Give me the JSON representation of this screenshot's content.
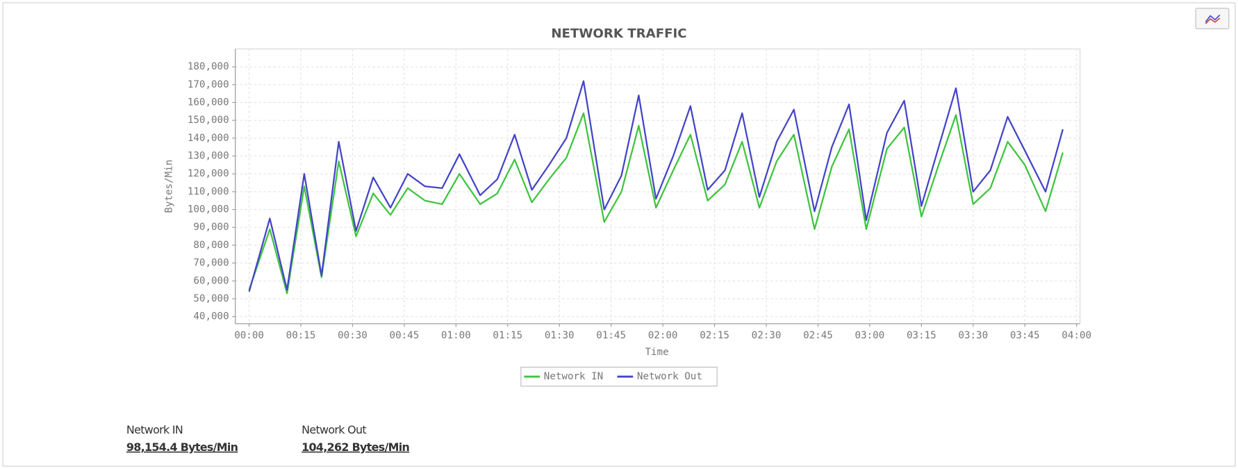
{
  "chart_data": {
    "type": "line",
    "title": "NETWORK TRAFFIC",
    "x_label": "Time",
    "y_label": "Bytes/Min",
    "x": [
      0,
      6,
      11,
      16,
      21,
      26,
      31,
      36,
      41,
      46,
      51,
      56,
      61,
      67,
      72,
      77,
      82,
      87,
      92,
      97,
      103,
      108,
      113,
      118,
      123,
      128,
      133,
      138,
      143,
      148,
      153,
      158,
      164,
      169,
      174,
      179,
      185,
      190,
      195,
      200,
      205,
      210,
      215,
      220,
      225,
      231,
      236
    ],
    "series": [
      {
        "name": "Network IN",
        "color": "#3fc43f",
        "values": [
          55000,
          89000,
          53000,
          113000,
          62000,
          127000,
          85000,
          109000,
          97000,
          112000,
          105000,
          103000,
          120000,
          103000,
          109000,
          128000,
          104000,
          117000,
          129000,
          154000,
          93000,
          110000,
          147000,
          101000,
          122000,
          142000,
          105000,
          114000,
          138000,
          101000,
          127000,
          142000,
          89000,
          124000,
          145000,
          89000,
          134000,
          146000,
          96000,
          125000,
          153000,
          103000,
          112000,
          138000,
          125000,
          99000,
          132000
        ]
      },
      {
        "name": "Network Out",
        "color": "#4444c8",
        "values": [
          54000,
          95000,
          55000,
          120000,
          63000,
          138000,
          88000,
          118000,
          101000,
          120000,
          113000,
          112000,
          131000,
          108000,
          117000,
          142000,
          111000,
          125000,
          140000,
          172000,
          100000,
          119000,
          164000,
          106000,
          130000,
          158000,
          111000,
          122000,
          154000,
          107000,
          138000,
          156000,
          99000,
          135000,
          159000,
          94000,
          143000,
          161000,
          102000,
          135000,
          168000,
          110000,
          122000,
          152000,
          133000,
          110000,
          145000
        ]
      }
    ],
    "xlim": [
      -4,
      241
    ],
    "ylim": [
      36000,
      190000
    ],
    "xticks": [
      {
        "value": 0,
        "label": "00:00"
      },
      {
        "value": 15,
        "label": "00:15"
      },
      {
        "value": 30,
        "label": "00:30"
      },
      {
        "value": 45,
        "label": "00:45"
      },
      {
        "value": 60,
        "label": "01:00"
      },
      {
        "value": 75,
        "label": "01:15"
      },
      {
        "value": 90,
        "label": "01:30"
      },
      {
        "value": 105,
        "label": "01:45"
      },
      {
        "value": 120,
        "label": "02:00"
      },
      {
        "value": 135,
        "label": "02:15"
      },
      {
        "value": 150,
        "label": "02:30"
      },
      {
        "value": 165,
        "label": "02:45"
      },
      {
        "value": 180,
        "label": "03:00"
      },
      {
        "value": 195,
        "label": "03:15"
      },
      {
        "value": 210,
        "label": "03:30"
      },
      {
        "value": 225,
        "label": "03:45"
      },
      {
        "value": 240,
        "label": "04:00"
      }
    ],
    "yticks": [
      {
        "value": 40000,
        "label": "40,000"
      },
      {
        "value": 50000,
        "label": "50,000"
      },
      {
        "value": 60000,
        "label": "60,000"
      },
      {
        "value": 70000,
        "label": "70,000"
      },
      {
        "value": 80000,
        "label": "80,000"
      },
      {
        "value": 90000,
        "label": "90,000"
      },
      {
        "value": 100000,
        "label": "100,000"
      },
      {
        "value": 110000,
        "label": "110,000"
      },
      {
        "value": 120000,
        "label": "120,000"
      },
      {
        "value": 130000,
        "label": "130,000"
      },
      {
        "value": 140000,
        "label": "140,000"
      },
      {
        "value": 150000,
        "label": "150,000"
      },
      {
        "value": 160000,
        "label": "160,000"
      },
      {
        "value": 170000,
        "label": "170,000"
      },
      {
        "value": 180000,
        "label": "180,000"
      }
    ],
    "grid": true,
    "legend": "bottom"
  },
  "stats": [
    {
      "label": "Network IN",
      "value": "98,154.4 Bytes/Min"
    },
    {
      "label": "Network Out",
      "value": "104,262 Bytes/Min"
    }
  ]
}
